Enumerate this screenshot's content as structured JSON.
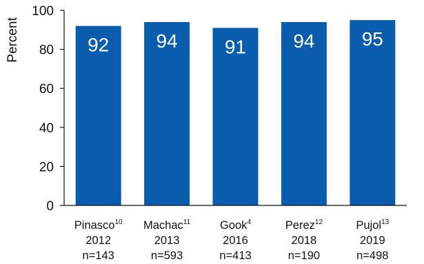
{
  "chart_data": {
    "type": "bar",
    "ylabel": "Percent",
    "ylim": [
      0,
      100
    ],
    "yticks": [
      0,
      20,
      40,
      60,
      80,
      100
    ],
    "grid": false,
    "bar_color": "#0a5cad",
    "categories": [
      {
        "name": "Pinasco",
        "ref": "10",
        "year": "2012",
        "n": "n=143"
      },
      {
        "name": "Machac",
        "ref": "11",
        "year": "2013",
        "n": "n=593"
      },
      {
        "name": "Gook",
        "ref": "4",
        "year": "2016",
        "n": "n=413"
      },
      {
        "name": "Perez",
        "ref": "12",
        "year": "2018",
        "n": "n=190"
      },
      {
        "name": "Pujol",
        "ref": "13",
        "year": "2019",
        "n": "n=498"
      }
    ],
    "values": [
      92,
      94,
      91,
      94,
      95
    ]
  }
}
